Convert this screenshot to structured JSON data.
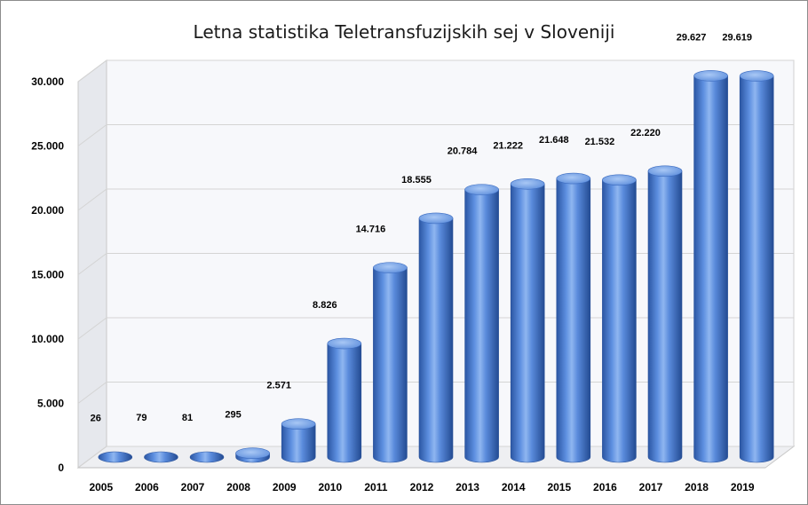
{
  "chart_data": {
    "type": "bar",
    "title": "Letna statistika Teletransfuzijskih sej v Sloveniji",
    "categories": [
      "2005",
      "2006",
      "2007",
      "2008",
      "2009",
      "2010",
      "2011",
      "2012",
      "2013",
      "2014",
      "2015",
      "2016",
      "2017",
      "2018",
      "2019"
    ],
    "values": [
      26,
      79,
      81,
      295,
      2571,
      8826,
      14716,
      18555,
      20784,
      21222,
      21648,
      21532,
      22220,
      29627,
      29619
    ],
    "value_labels": [
      "26",
      "79",
      "81",
      "295",
      "2.571",
      "8.826",
      "14.716",
      "18.555",
      "20.784",
      "21.222",
      "21.648",
      "21.532",
      "22.220",
      "29.627",
      "29.619"
    ],
    "ylim": [
      0,
      30000
    ],
    "yticks": [
      0,
      5000,
      10000,
      15000,
      20000,
      25000,
      30000
    ],
    "ytick_labels": [
      "0",
      "5.000",
      "10.000",
      "15.000",
      "20.000",
      "25.000",
      "30.000"
    ],
    "xlabel": "",
    "ylabel": "",
    "grid": true,
    "legend": "none",
    "style": "3d-cylinder",
    "colors": {
      "bar": "#4f81d4",
      "bar_dark": "#2c58a6",
      "bar_light": "#9fc1f2",
      "wall": "#e6e8ed",
      "grid": "#d4d4d4"
    }
  }
}
